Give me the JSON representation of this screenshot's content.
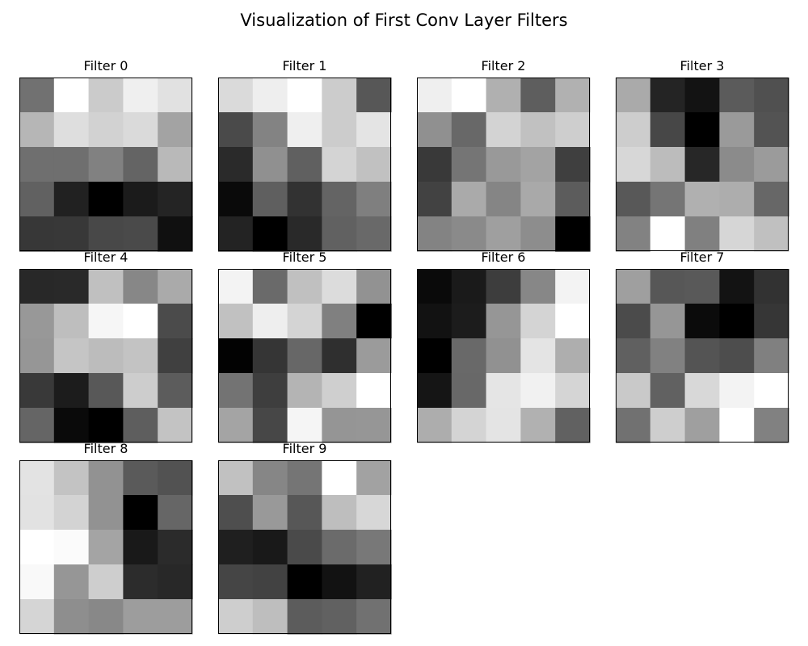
{
  "chart_data": {
    "type": "heatmap",
    "title": "Visualization of First Conv Layer Filters",
    "colormap": "gray",
    "axis_ticks": false,
    "panels": [
      {
        "title": "Filter 0",
        "values": [
          [
            113,
            255,
            203,
            239,
            225
          ],
          [
            182,
            222,
            210,
            218,
            163
          ],
          [
            111,
            111,
            129,
            100,
            185
          ],
          [
            97,
            33,
            0,
            27,
            36
          ],
          [
            55,
            56,
            72,
            74,
            16
          ]
        ]
      },
      {
        "title": "Filter 1",
        "values": [
          [
            218,
            238,
            255,
            204,
            87
          ],
          [
            74,
            131,
            239,
            204,
            228
          ],
          [
            42,
            144,
            96,
            212,
            193
          ],
          [
            10,
            95,
            50,
            100,
            127
          ],
          [
            35,
            0,
            41,
            97,
            105
          ]
        ]
      },
      {
        "title": "Filter 2",
        "values": [
          [
            239,
            255,
            176,
            94,
            177
          ],
          [
            144,
            104,
            211,
            193,
            206
          ],
          [
            57,
            117,
            153,
            163,
            63
          ],
          [
            66,
            170,
            133,
            169,
            92
          ],
          [
            131,
            138,
            159,
            141,
            0
          ]
        ]
      },
      {
        "title": "Filter 3",
        "values": [
          [
            170,
            36,
            19,
            91,
            80
          ],
          [
            205,
            71,
            0,
            154,
            83
          ],
          [
            215,
            188,
            39,
            139,
            155
          ],
          [
            88,
            117,
            176,
            173,
            103
          ],
          [
            130,
            255,
            128,
            214,
            192
          ]
        ]
      },
      {
        "title": "Filter 4",
        "values": [
          [
            40,
            41,
            192,
            135,
            170
          ],
          [
            152,
            190,
            246,
            255,
            75
          ],
          [
            150,
            197,
            188,
            195,
            64
          ],
          [
            57,
            28,
            88,
            205,
            92
          ],
          [
            101,
            10,
            0,
            94,
            195
          ]
        ]
      },
      {
        "title": "Filter 5",
        "values": [
          [
            243,
            106,
            192,
            220,
            146
          ],
          [
            193,
            238,
            212,
            128,
            0
          ],
          [
            2,
            53,
            103,
            47,
            155
          ],
          [
            115,
            62,
            180,
            207,
            255
          ],
          [
            164,
            71,
            245,
            149,
            150
          ]
        ]
      },
      {
        "title": "Filter 6",
        "values": [
          [
            10,
            26,
            61,
            135,
            243
          ],
          [
            18,
            28,
            150,
            212,
            255
          ],
          [
            0,
            105,
            145,
            228,
            174
          ],
          [
            21,
            104,
            229,
            241,
            213
          ],
          [
            173,
            212,
            228,
            177,
            97
          ]
        ]
      },
      {
        "title": "Filter 7",
        "values": [
          [
            159,
            87,
            89,
            19,
            50
          ],
          [
            75,
            150,
            11,
            0,
            54
          ],
          [
            96,
            129,
            84,
            77,
            128
          ],
          [
            201,
            97,
            216,
            243,
            255
          ],
          [
            113,
            206,
            159,
            255,
            129
          ]
        ]
      },
      {
        "title": "Filter 8",
        "values": [
          [
            227,
            195,
            146,
            90,
            82
          ],
          [
            226,
            211,
            146,
            0,
            102
          ],
          [
            255,
            251,
            164,
            25,
            43
          ],
          [
            249,
            150,
            206,
            44,
            40
          ],
          [
            213,
            142,
            136,
            157,
            157
          ]
        ]
      },
      {
        "title": "Filter 9",
        "values": [
          [
            193,
            134,
            117,
            255,
            162
          ],
          [
            78,
            153,
            87,
            190,
            215
          ],
          [
            31,
            25,
            74,
            107,
            120
          ],
          [
            69,
            66,
            0,
            18,
            33
          ],
          [
            206,
            190,
            92,
            97,
            113
          ]
        ]
      }
    ]
  }
}
